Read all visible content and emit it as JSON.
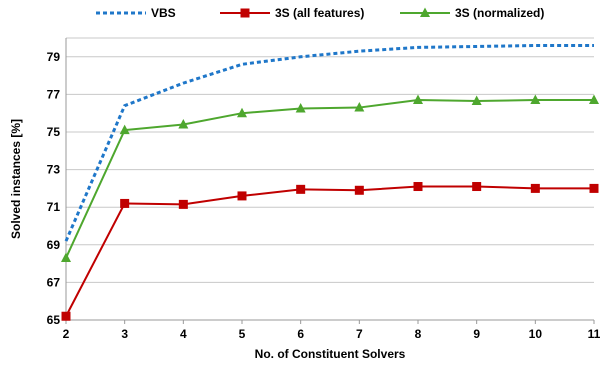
{
  "chart_data": {
    "type": "line",
    "x": [
      2,
      3,
      4,
      5,
      6,
      7,
      8,
      9,
      10,
      11
    ],
    "xlabel": "No. of Constituent Solvers",
    "ylabel": "Solved instances [%]",
    "xlim": [
      2,
      11
    ],
    "ylim": [
      65,
      80
    ],
    "yticks": [
      65,
      67,
      69,
      71,
      73,
      75,
      77,
      79
    ],
    "grid": "horizontal",
    "legend_position": "top",
    "series": [
      {
        "name": "VBS",
        "color": "#1f77c9",
        "style": "dotted",
        "marker": "none",
        "values": [
          69.2,
          76.4,
          77.6,
          78.6,
          79.0,
          79.3,
          79.5,
          79.55,
          79.6,
          79.6
        ]
      },
      {
        "name": "3S (all features)",
        "color": "#c00000",
        "style": "solid",
        "marker": "square",
        "values": [
          65.2,
          71.2,
          71.15,
          71.6,
          71.95,
          71.9,
          72.1,
          72.1,
          72.0,
          72.0
        ]
      },
      {
        "name": "3S (normalized)",
        "color": "#4ea72e",
        "style": "solid",
        "marker": "triangle",
        "values": [
          68.3,
          75.1,
          75.4,
          76.0,
          76.25,
          76.3,
          76.7,
          76.65,
          76.7,
          76.7
        ]
      }
    ]
  }
}
